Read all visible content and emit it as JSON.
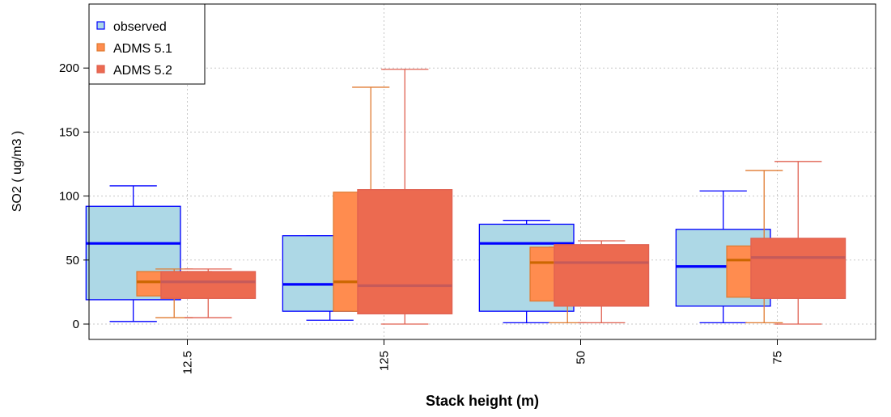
{
  "chart_data": {
    "type": "boxplot",
    "xlabel": "Stack height (m)",
    "ylabel": "SO2  ( ug/m3 )",
    "ylim": [
      -12,
      250
    ],
    "yticks": [
      0,
      50,
      100,
      150,
      200
    ],
    "grid": true,
    "legend_position": "top-left",
    "categories": [
      "12.5",
      "125",
      "50",
      "75"
    ],
    "series": [
      {
        "name": "observed",
        "fill": "#add8e6",
        "stroke": "#0000ff",
        "median_color": "#0000ff",
        "boxes": [
          {
            "whisker_low": 2,
            "q1": 19,
            "median": 63,
            "q3": 92,
            "whisker_high": 108
          },
          {
            "whisker_low": 3,
            "q1": 10,
            "median": 31,
            "q3": 69,
            "whisker_high": 69
          },
          {
            "whisker_low": 1,
            "q1": 10,
            "median": 63,
            "q3": 78,
            "whisker_high": 81
          },
          {
            "whisker_low": 1,
            "q1": 14,
            "median": 45,
            "q3": 74,
            "whisker_high": 104
          }
        ]
      },
      {
        "name": "ADMS 5.1",
        "fill": "#ff8c4f",
        "stroke": "#e07a30",
        "median_color": "#cc6600",
        "boxes": [
          {
            "whisker_low": 5,
            "q1": 22,
            "median": 33,
            "q3": 41,
            "whisker_high": 43
          },
          {
            "whisker_low": 10,
            "q1": 10,
            "median": 33,
            "q3": 103,
            "whisker_high": 185
          },
          {
            "whisker_low": 1,
            "q1": 18,
            "median": 48,
            "q3": 60,
            "whisker_high": 60
          },
          {
            "whisker_low": 1,
            "q1": 21,
            "median": 50,
            "q3": 61,
            "whisker_high": 120
          }
        ]
      },
      {
        "name": "ADMS 5.2",
        "fill": "#ec6a50",
        "stroke": "#e06050",
        "median_color": "#c55a5a",
        "boxes": [
          {
            "whisker_low": 5,
            "q1": 20,
            "median": 33,
            "q3": 41,
            "whisker_high": 43
          },
          {
            "whisker_low": 0,
            "q1": 8,
            "median": 30,
            "q3": 105,
            "whisker_high": 199
          },
          {
            "whisker_low": 1,
            "q1": 14,
            "median": 48,
            "q3": 62,
            "whisker_high": 65
          },
          {
            "whisker_low": 0,
            "q1": 20,
            "median": 52,
            "q3": 67,
            "whisker_high": 127
          }
        ]
      }
    ]
  }
}
